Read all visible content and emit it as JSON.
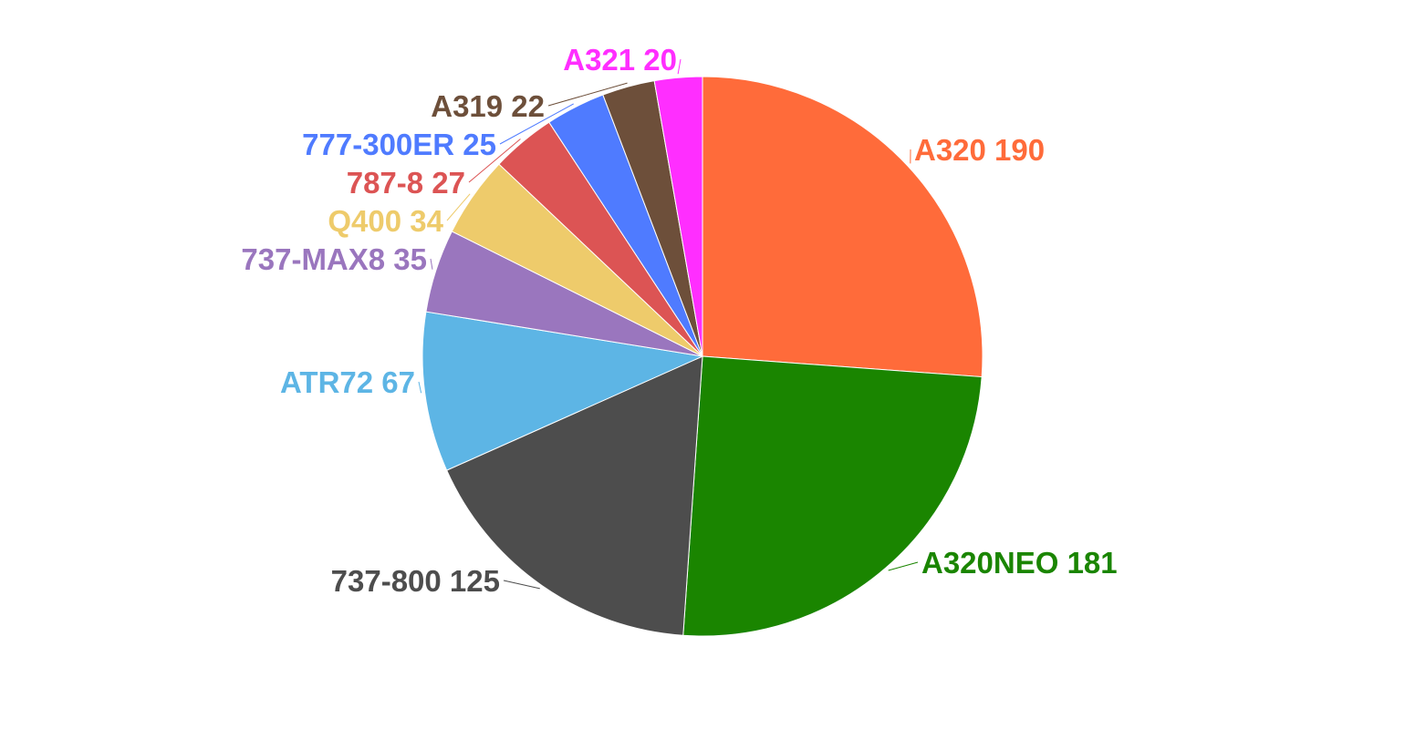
{
  "chart_data": {
    "type": "pie",
    "start": "top",
    "direction": "clockwise",
    "legend": "none",
    "slices": [
      {
        "label": "A320",
        "value": 190,
        "color": "#FF6B3A"
      },
      {
        "label": "A320NEO",
        "value": 181,
        "color": "#1A8500"
      },
      {
        "label": "737-800",
        "value": 125,
        "color": "#4D4D4D"
      },
      {
        "label": "ATR72",
        "value": 67,
        "color": "#5DB5E5"
      },
      {
        "label": "737-MAX8",
        "value": 35,
        "color": "#9A76BE"
      },
      {
        "label": "Q400",
        "value": 34,
        "color": "#EECB6B"
      },
      {
        "label": "787-8",
        "value": 27,
        "color": "#DC5454"
      },
      {
        "label": "777-300ER",
        "value": 25,
        "color": "#4F7BFF"
      },
      {
        "label": "A319",
        "value": 22,
        "color": "#6D4F3A"
      },
      {
        "label": "A321",
        "value": 20,
        "color": "#FF2EFF"
      }
    ]
  }
}
